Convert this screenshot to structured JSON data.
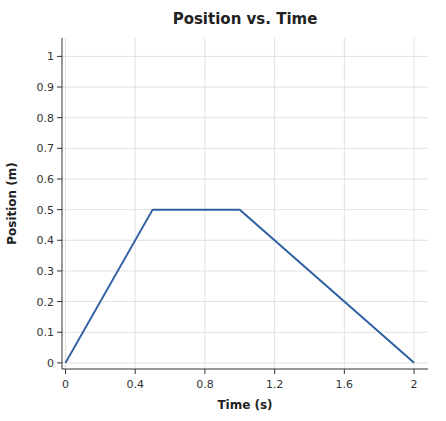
{
  "chart_data": {
    "type": "line",
    "title": "Position vs. Time",
    "xlabel": "Time (s)",
    "ylabel": "Position (m)",
    "x": [
      0,
      0.5,
      1.0,
      2.0
    ],
    "values": [
      0,
      0.5,
      0.5,
      0
    ],
    "color": "#2e5fa3",
    "xlim": [
      -0.02,
      2.08
    ],
    "ylim": [
      -0.02,
      1.06
    ],
    "xticks": [
      0,
      0.4,
      0.8,
      1.2,
      1.6,
      2
    ],
    "yticks": [
      0,
      0.1,
      0.2,
      0.3,
      0.4,
      0.5,
      0.6,
      0.7,
      0.8,
      0.9,
      1
    ],
    "grid": true
  }
}
